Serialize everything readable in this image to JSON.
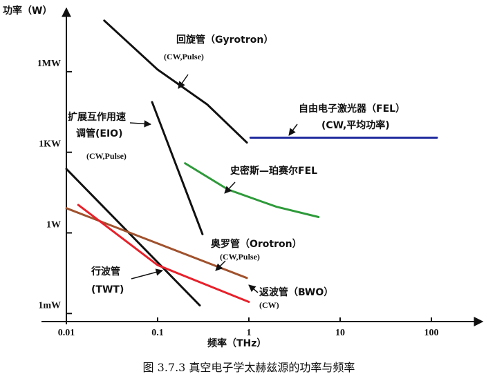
{
  "chart_data": {
    "type": "line",
    "title": "图 3.7.3 真空电子学太赫兹源的功率与频率",
    "x_label": "频率（THz）",
    "y_label": "功率（W）",
    "xlog": true,
    "ylog": true,
    "xlim": [
      0.01,
      300
    ],
    "ylim": [
      0.0005,
      100000000
    ],
    "xticks": [
      0.01,
      0.1,
      1,
      10,
      100
    ],
    "yticks": [
      {
        "value": 0.001,
        "label": "1mW"
      },
      {
        "value": 1,
        "label": "1W"
      },
      {
        "value": 1000,
        "label": "1KW"
      },
      {
        "value": 1000000,
        "label": "1MW"
      }
    ],
    "series": [
      {
        "labels": [
          "回旋管（Gyrotron）",
          "(CW,Pulse)"
        ],
        "color": "#111111",
        "x": [
          0.026,
          0.1,
          0.35,
          0.95
        ],
        "values": [
          80000000,
          1200000,
          60000,
          2300
        ]
      },
      {
        "labels": [
          "自由电子激光器（FEL）",
          "(CW,平均功率)"
        ],
        "color": "#1f2a9e",
        "x": [
          1.04,
          115
        ],
        "values": [
          3500,
          3500
        ]
      },
      {
        "labels": [
          "史密斯—珀赛尔FEL"
        ],
        "color": "#2e9a3a",
        "x": [
          0.2,
          0.59,
          2.0,
          5.8
        ],
        "values": [
          390,
          41,
          9.4,
          3.9
        ]
      },
      {
        "labels": [
          "扩展互作用速",
          "调管(EIO)",
          "(CW,Pulse)"
        ],
        "color": "#111111",
        "x": [
          0.087,
          0.31
        ],
        "values": [
          74000,
          0.9
        ]
      },
      {
        "labels": [
          "行波管",
          "(TWT)"
        ],
        "color": "#111111",
        "x": [
          0.01,
          0.29
        ],
        "values": [
          240,
          0.002
        ]
      },
      {
        "labels": [
          "奥罗管（Orotron）",
          "(CW,Pulse)"
        ],
        "color": "#a0522d",
        "x": [
          0.01,
          0.95
        ],
        "values": [
          8.3,
          0.021
        ]
      },
      {
        "labels": [
          "返波管（BWO）",
          "(CW)"
        ],
        "color": "#e8202a",
        "x": [
          0.0135,
          0.1,
          1.0
        ],
        "values": [
          11,
          0.063,
          0.0027
        ]
      }
    ]
  }
}
